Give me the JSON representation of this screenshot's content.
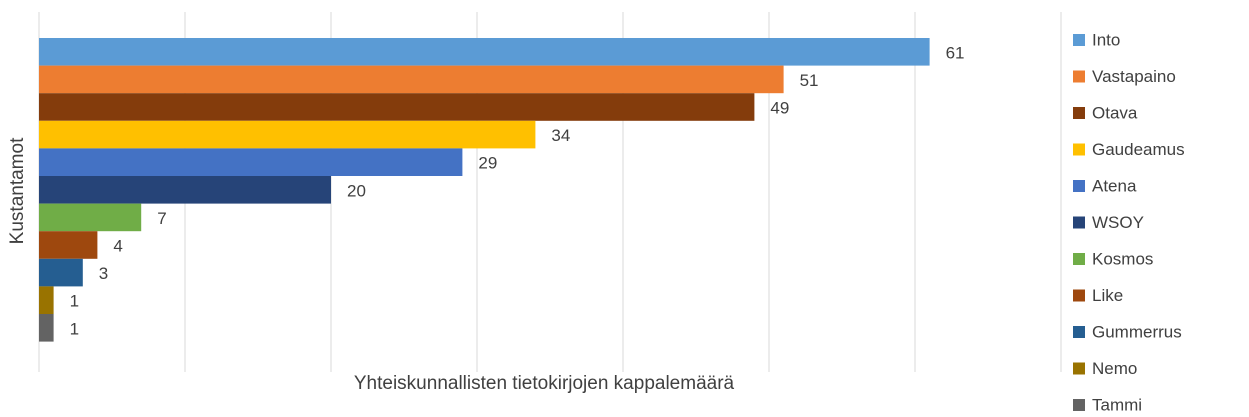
{
  "chart_data": {
    "type": "bar",
    "orientation": "horizontal",
    "x_label": "Yhteiskunnallisten tietokirjojen kappalemäärä",
    "y_label": "Kustantamot",
    "categories": [
      null
    ],
    "series": [
      {
        "name": "Into",
        "color": "#5b9bd5",
        "values": [
          61
        ]
      },
      {
        "name": "Vastapaino",
        "color": "#ed7d31",
        "values": [
          51
        ]
      },
      {
        "name": "Otava",
        "color": "#843c0c",
        "values": [
          49
        ]
      },
      {
        "name": "Gaudeamus",
        "color": "#ffc000",
        "values": [
          34
        ]
      },
      {
        "name": "Atena",
        "color": "#4472c4",
        "values": [
          29
        ]
      },
      {
        "name": "WSOY",
        "color": "#264478",
        "values": [
          20
        ]
      },
      {
        "name": "Kosmos",
        "color": "#70ad47",
        "values": [
          7
        ]
      },
      {
        "name": "Like",
        "color": "#9e480e",
        "values": [
          4
        ]
      },
      {
        "name": "Gummerrus",
        "color": "#255e91",
        "values": [
          3
        ]
      },
      {
        "name": "Nemo",
        "color": "#997300",
        "values": [
          1
        ]
      },
      {
        "name": "Tammi",
        "color": "#636363",
        "values": [
          1
        ]
      }
    ],
    "xlim": [
      0,
      70
    ],
    "xticks": [
      0,
      10,
      20,
      30,
      40,
      50,
      60,
      70
    ],
    "grid": true,
    "legend": "right"
  }
}
